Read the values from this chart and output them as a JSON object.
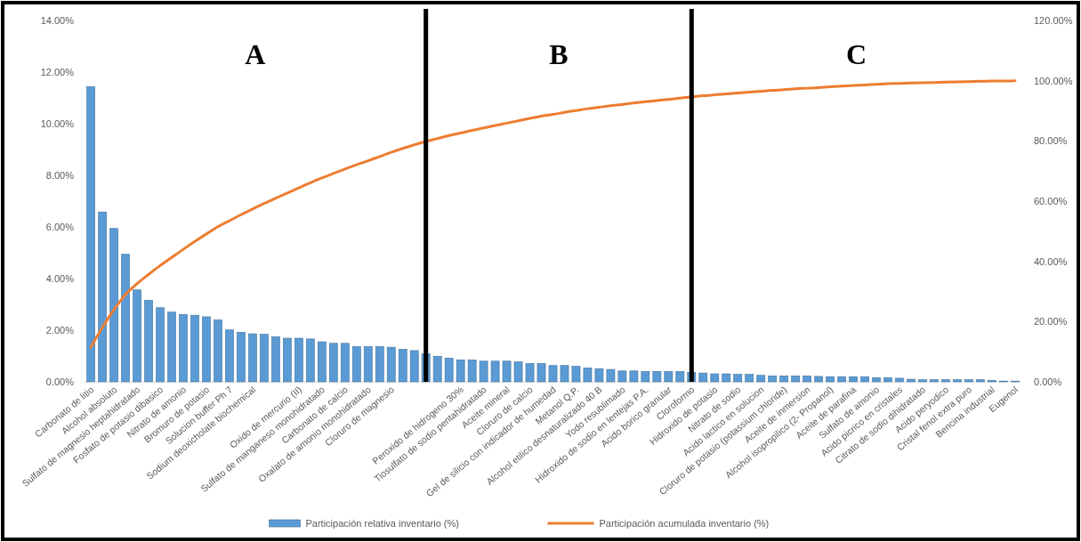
{
  "chart_data": {
    "type": "bar",
    "categories": [
      "Carbonato de litio",
      null,
      "Alcohol absoluto",
      null,
      "Sulfato de magnesio heptahidratado",
      null,
      "Fosfato de potasio dibasico",
      null,
      "Nitrato de amonio",
      null,
      "Bromuro de potasio",
      null,
      "Solucion buffer Ph 7",
      null,
      "Sodium deoxicholate biochemical",
      null,
      null,
      null,
      "Oxido de mercurio (II)",
      null,
      "Sulfato de manganeso monohidratado",
      null,
      "Carbonato de calcio",
      null,
      "Oxalato de amonio monohidratado",
      null,
      "Cloruro de magnesio",
      null,
      null,
      null,
      null,
      null,
      "Peroxido de hidrogeno 30%",
      null,
      "Tiosulfato de sodio pentahidratado",
      null,
      "Aceite mineral",
      null,
      "Cloruro de calcio",
      null,
      "Gel de silicio con indicador de humedad",
      null,
      "Metanol Q.P.",
      null,
      "Alcohol etilico desnaturalizado 40 B",
      null,
      "Yodo resublimado",
      null,
      "Hidroxido de sodio en lentejas P.A.",
      null,
      "Acido borico granular",
      null,
      "Cloroformo",
      null,
      "Hidroxido de potasio",
      null,
      "Nitrato de sodio",
      null,
      "Acido lactico en solucion",
      null,
      "Cloruro de potasio (potassium chloride)",
      null,
      "Aceite de inmersion",
      null,
      "Alcohol isopropilico (2- Propanol)",
      null,
      "Aceite de parafina",
      null,
      "Sulfato de amonio",
      null,
      "Acido picrico en cristales",
      null,
      "Citrato de sodio dihidratado",
      null,
      "Acido peryodico",
      null,
      "Cristal fenol extra puro",
      null,
      "Bencina industrial",
      null,
      "Eugenol"
    ],
    "series": [
      {
        "name": "Participación relativa inventario (%)",
        "color": "#5b9bd5",
        "values": [
          11.44,
          6.58,
          5.94,
          4.94,
          3.56,
          3.16,
          2.87,
          2.7,
          2.61,
          2.58,
          2.52,
          2.4,
          2.01,
          1.92,
          1.86,
          1.84,
          1.75,
          1.69,
          1.69,
          1.66,
          1.55,
          1.49,
          1.49,
          1.37,
          1.37,
          1.37,
          1.34,
          1.26,
          1.21,
          1.09,
          0.99,
          0.92,
          0.85,
          0.85,
          0.8,
          0.8,
          0.8,
          0.77,
          0.71,
          0.71,
          0.63,
          0.63,
          0.6,
          0.54,
          0.51,
          0.48,
          0.42,
          0.42,
          0.4,
          0.4,
          0.4,
          0.4,
          0.37,
          0.34,
          0.31,
          0.31,
          0.29,
          0.29,
          0.25,
          0.23,
          0.23,
          0.23,
          0.23,
          0.21,
          0.2,
          0.2,
          0.2,
          0.2,
          0.16,
          0.16,
          0.14,
          0.1,
          0.08,
          0.08,
          0.08,
          0.08,
          0.08,
          0.08,
          0.06,
          0.03,
          0.03
        ]
      },
      {
        "name": "Participación acumulada inventario (%)",
        "type": "line",
        "axis": "y2",
        "color": "#ed7d31",
        "values": [
          11.5,
          18.1,
          24.0,
          29.0,
          32.6,
          35.7,
          38.6,
          41.3,
          44.0,
          46.6,
          49.1,
          51.5,
          53.5,
          55.5,
          57.4,
          59.2,
          61.0,
          62.7,
          64.4,
          66.1,
          67.7,
          69.2,
          70.7,
          72.1,
          73.4,
          74.8,
          76.2,
          77.5,
          78.7,
          79.8,
          80.8,
          81.8,
          82.6,
          83.5,
          84.3,
          85.1,
          85.9,
          86.7,
          87.5,
          88.2,
          88.8,
          89.5,
          90.1,
          90.7,
          91.2,
          91.7,
          92.1,
          92.6,
          93.0,
          93.4,
          93.8,
          94.2,
          94.6,
          95.0,
          95.3,
          95.6,
          95.9,
          96.2,
          96.5,
          96.8,
          97.0,
          97.3,
          97.5,
          97.7,
          98.0,
          98.2,
          98.4,
          98.6,
          98.8,
          99.0,
          99.1,
          99.2,
          99.3,
          99.4,
          99.5,
          99.6,
          99.7,
          99.8,
          99.9,
          99.9,
          100.0
        ]
      }
    ],
    "ylim": [
      0,
      14
    ],
    "yticks": [
      {
        "value": 0,
        "label": "0.00%"
      },
      {
        "value": 2,
        "label": "2.00%"
      },
      {
        "value": 4,
        "label": "4.00%"
      },
      {
        "value": 6,
        "label": "6.00%"
      },
      {
        "value": 8,
        "label": "8.00%"
      },
      {
        "value": 10,
        "label": "10.00%"
      },
      {
        "value": 12,
        "label": "12.00%"
      },
      {
        "value": 14,
        "label": "14.00%"
      }
    ],
    "y2lim": [
      0,
      120
    ],
    "y2ticks": [
      {
        "value": 0,
        "label": "0.00%"
      },
      {
        "value": 20,
        "label": "20.00%"
      },
      {
        "value": 40,
        "label": "40.00%"
      },
      {
        "value": 60,
        "label": "60.00%"
      },
      {
        "value": 80,
        "label": "80.00%"
      },
      {
        "value": 100,
        "label": "100.00%"
      },
      {
        "value": 120,
        "label": "120.00%"
      }
    ],
    "annotations": [
      "A",
      "B",
      "C"
    ],
    "legend": "bottom",
    "grid": false,
    "marker": "none",
    "line_style": "solid"
  }
}
